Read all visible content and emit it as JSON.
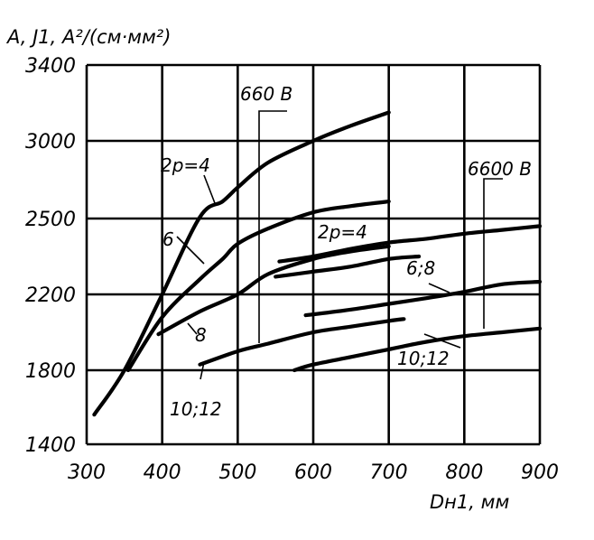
{
  "chart_data": {
    "type": "line",
    "title": "",
    "ylabel": "A, J1, A²/(см·мм²)",
    "xlabel": "Dн1, мм",
    "xlim": [
      300,
      900
    ],
    "ylim_ticks": [
      1400,
      1800,
      2200,
      2500,
      3000,
      3400
    ],
    "x_ticks": [
      300,
      400,
      500,
      600,
      700,
      800,
      900
    ],
    "grid": true,
    "voltage_labels": [
      "660 B",
      "6600 B"
    ],
    "series": [
      {
        "name": "2p=4",
        "group": "660 B",
        "x": [
          310,
          350,
          400,
          450,
          480,
          500,
          540,
          600,
          650,
          700
        ],
        "y": [
          1560,
          1800,
          2200,
          2510,
          2610,
          2700,
          2860,
          3000,
          3080,
          3150
        ]
      },
      {
        "name": "6",
        "group": "660 B",
        "x": [
          355,
          400,
          450,
          480,
          500,
          540,
          600,
          650,
          700
        ],
        "y": [
          1800,
          2080,
          2260,
          2340,
          2400,
          2460,
          2540,
          2580,
          2610
        ]
      },
      {
        "name": "8",
        "group": "660 B",
        "x": [
          395,
          450,
          500,
          540,
          600,
          650,
          700
        ],
        "y": [
          1990,
          2110,
          2200,
          2280,
          2340,
          2370,
          2390
        ]
      },
      {
        "name": "10;12",
        "group": "660 B",
        "x": [
          450,
          500,
          540,
          600,
          650,
          700,
          720
        ],
        "y": [
          1830,
          1900,
          1940,
          2000,
          2030,
          2060,
          2070
        ]
      },
      {
        "name": "2p=4",
        "group": "6600 B",
        "x": [
          555,
          600,
          650,
          700,
          750,
          800,
          850,
          900
        ],
        "y": [
          2330,
          2350,
          2380,
          2405,
          2420,
          2440,
          2455,
          2470
        ]
      },
      {
        "name": "6;8",
        "group": "6600 B",
        "x": [
          550,
          600,
          650,
          700,
          740
        ],
        "y": [
          2270,
          2290,
          2310,
          2340,
          2350
        ]
      },
      {
        "name": "6;8",
        "group": "6600 B",
        "x": [
          590,
          650,
          700,
          750,
          800,
          850,
          900
        ],
        "y": [
          2090,
          2120,
          2150,
          2180,
          2210,
          2240,
          2250
        ]
      },
      {
        "name": "10;12",
        "group": "6600 B",
        "x": [
          575,
          600,
          650,
          700,
          750,
          800,
          850,
          900
        ],
        "y": [
          1800,
          1830,
          1870,
          1910,
          1950,
          1980,
          2000,
          2020
        ]
      }
    ],
    "annotations": [
      "660 B",
      "2p=4",
      "6",
      "8",
      "10;12",
      "2p=4",
      "6;8",
      "6600 B",
      "10;12"
    ],
    "tick_labels_y": [
      "3400",
      "3000",
      "2500",
      "2200",
      "1800",
      "1400"
    ],
    "tick_labels_x": [
      "300",
      "400",
      "500",
      "600",
      "700",
      "800",
      "900"
    ]
  }
}
